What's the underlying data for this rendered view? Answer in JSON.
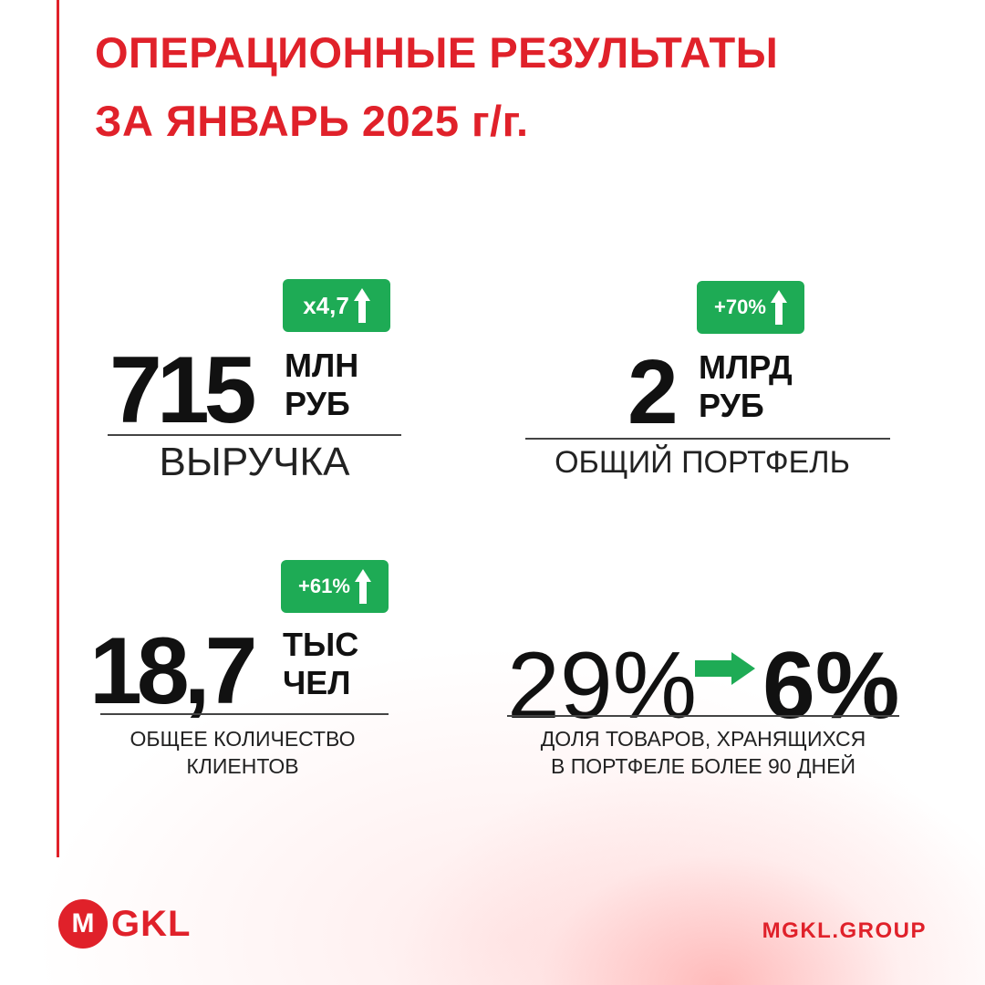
{
  "header": {
    "title_line1": "ОПЕРАЦИОННЫЕ РЕЗУЛЬТАТЫ",
    "title_line2": "ЗА ЯНВАРЬ 2025 г/г."
  },
  "metrics": [
    {
      "badge": "x4,7",
      "value": "715",
      "unit_line1": "МЛН",
      "unit_line2": "РУБ",
      "label": "ВЫРУЧКА"
    },
    {
      "badge": "+70%",
      "value": "2",
      "unit_line1": "МЛРД",
      "unit_line2": "РУБ",
      "label": "ОБЩИЙ ПОРТФЕЛЬ"
    },
    {
      "badge": "+61%",
      "value": "18,7",
      "unit_line1": "ТЫС",
      "unit_line2": "ЧЕЛ",
      "label_line1": "ОБЩЕЕ КОЛИЧЕСТВО",
      "label_line2": "КЛИЕНТОВ"
    },
    {
      "from": "29%",
      "to": "6%",
      "label_line1": "ДОЛЯ ТОВАРОВ, ХРАНЯЩИХСЯ",
      "label_line2": "В ПОРТФЕЛЕ БОЛЕЕ 90 ДНЕЙ"
    }
  ],
  "footer": {
    "logo_mark": "M",
    "logo_text": "GKL",
    "website": "MGKL.GROUP"
  },
  "colors": {
    "accent": "#e0212a",
    "badge_green": "#1eab55",
    "text": "#111111"
  }
}
